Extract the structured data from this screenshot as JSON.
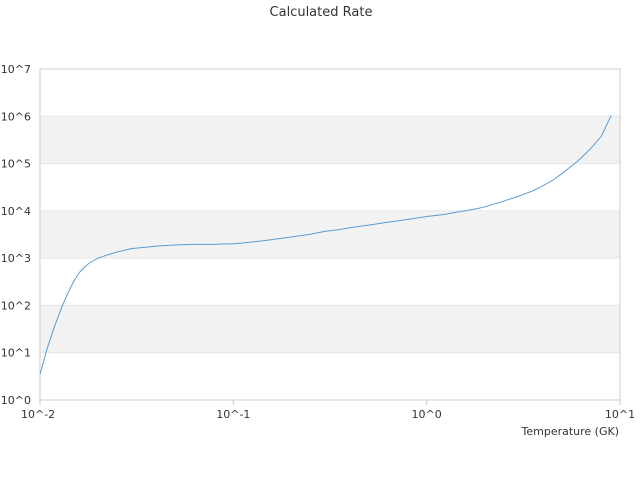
{
  "chart_data": {
    "type": "line",
    "title": "Calculated Rate",
    "xlabel": "Temperature (GK)",
    "ylabel": "",
    "x_scale": "log",
    "y_scale": "log",
    "xlim": [
      0.01,
      10
    ],
    "ylim": [
      1,
      10000000
    ],
    "x_ticks": [
      {
        "value": 0.01,
        "label": "10^-2"
      },
      {
        "value": 0.1,
        "label": "10^-1"
      },
      {
        "value": 1,
        "label": "10^0"
      },
      {
        "value": 10,
        "label": "10^1"
      }
    ],
    "y_ticks": [
      {
        "value": 1,
        "label": "10^0"
      },
      {
        "value": 10,
        "label": "10^1"
      },
      {
        "value": 100,
        "label": "10^2"
      },
      {
        "value": 1000,
        "label": "10^3"
      },
      {
        "value": 10000,
        "label": "10^4"
      },
      {
        "value": 100000,
        "label": "10^5"
      },
      {
        "value": 1000000,
        "label": "10^6"
      },
      {
        "value": 10000000,
        "label": "10^7"
      }
    ],
    "grid": "alternating horizontal bands",
    "legend": "none",
    "colors": {
      "line": "#5b9bd5",
      "band": "#f2f2f2",
      "axis": "#cccccc",
      "text": "#333333"
    },
    "series": [
      {
        "x": [
          0.01,
          0.011,
          0.012,
          0.013,
          0.014,
          0.015,
          0.016,
          0.017,
          0.018,
          0.02,
          0.022,
          0.025,
          0.028,
          0.03,
          0.035,
          0.04,
          0.045,
          0.05,
          0.06,
          0.07,
          0.08,
          0.09,
          0.1,
          0.12,
          0.15,
          0.18,
          0.2,
          0.25,
          0.3,
          0.35,
          0.4,
          0.45,
          0.5,
          0.6,
          0.7,
          0.8,
          0.9,
          1.0,
          1.2,
          1.5,
          1.8,
          2.0,
          2.5,
          3.0,
          3.5,
          4.0,
          4.5,
          5.0,
          6.0,
          7.0,
          8.0,
          9.0
        ],
        "y": [
          3.5,
          14,
          40,
          95,
          190,
          330,
          500,
          650,
          790,
          1000,
          1150,
          1350,
          1500,
          1600,
          1700,
          1800,
          1850,
          1900,
          1950,
          1950,
          1950,
          2000,
          2000,
          2150,
          2400,
          2650,
          2800,
          3200,
          3700,
          4000,
          4400,
          4700,
          5000,
          5600,
          6100,
          6600,
          7100,
          7600,
          8300,
          9700,
          11000,
          12200,
          16000,
          20500,
          26000,
          34000,
          45000,
          61000,
          110000,
          200000,
          380000,
          1050000
        ]
      }
    ]
  }
}
